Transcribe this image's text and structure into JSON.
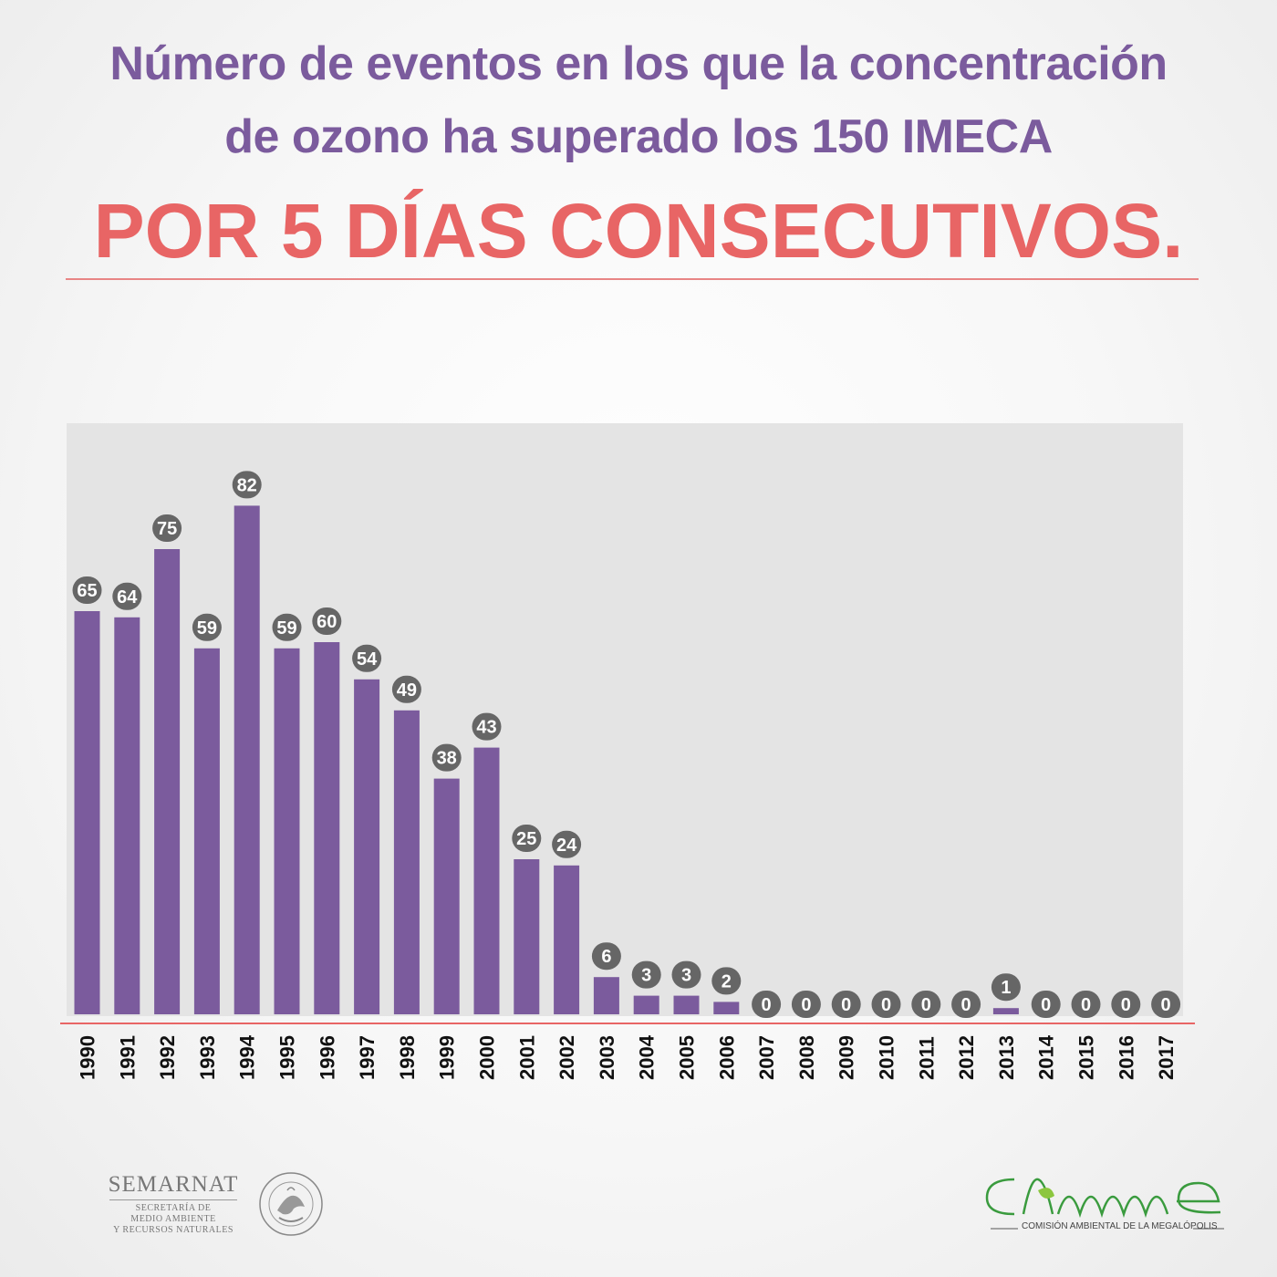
{
  "header": {
    "title_line1": "Número de eventos en los que la concentración",
    "title_line2": "de ozono ha superado los 150 IMECA",
    "title_line3": "POR 5 DÍAS CONSECUTIVOS."
  },
  "colors": {
    "bar": "#7b5b9d",
    "title": "#7b5b9d",
    "accent": "#e86565",
    "label_bubble": "#666666",
    "plot_bg": "#e4e4e4"
  },
  "chart_data": {
    "type": "bar",
    "title": "Número de eventos en los que la concentración de ozono ha superado los 150 IMECA POR 5 DÍAS CONSECUTIVOS.",
    "categories": [
      "1990",
      "1991",
      "1992",
      "1993",
      "1994",
      "1995",
      "1996",
      "1997",
      "1998",
      "1999",
      "2000",
      "2001",
      "2002",
      "2003",
      "2004",
      "2005",
      "2006",
      "2007",
      "2008",
      "2009",
      "2010",
      "2011",
      "2012",
      "2013",
      "2014",
      "2015",
      "2016",
      "2017"
    ],
    "values": [
      65,
      64,
      75,
      59,
      82,
      59,
      60,
      54,
      49,
      38,
      43,
      25,
      24,
      6,
      3,
      3,
      2,
      0,
      0,
      0,
      0,
      0,
      0,
      1,
      0,
      0,
      0,
      0
    ],
    "ylim": [
      0,
      95
    ],
    "grid": false,
    "data_labels": true
  },
  "footer": {
    "semarnat_name": "SEMARNAT",
    "semarnat_sub1": "SECRETARÍA DE",
    "semarnat_sub2": "MEDIO AMBIENTE",
    "semarnat_sub3": "Y RECURSOS NATURALES",
    "seal_text": "ESTADOS UNIDOS MEXICANOS",
    "came_name": "COMISIÓN AMBIENTAL DE LA MEGALÓPOLIS"
  }
}
